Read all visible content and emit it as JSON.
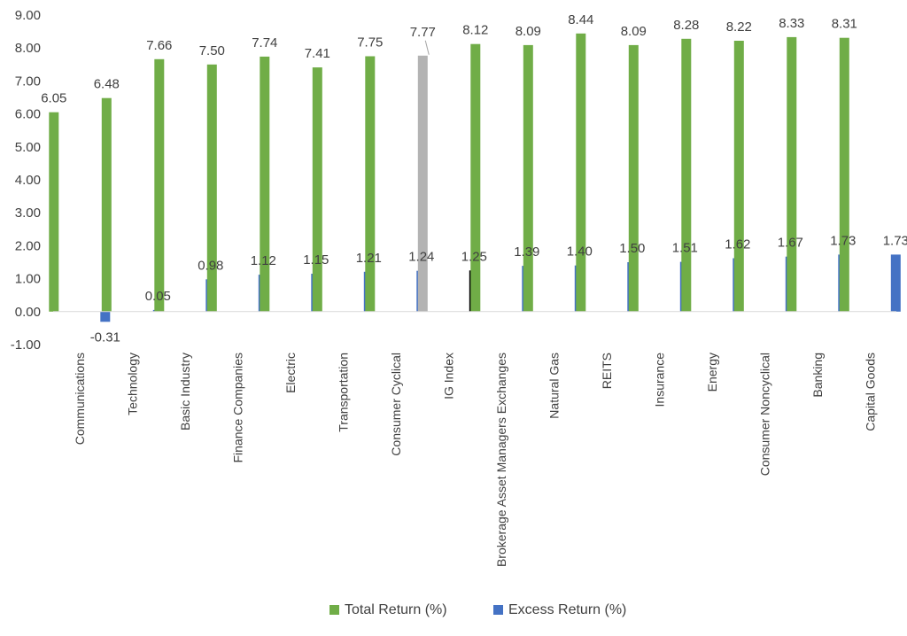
{
  "chart_data": {
    "type": "bar",
    "title": "",
    "xlabel": "",
    "ylabel": "",
    "ylim": [
      -1,
      9
    ],
    "yticks": [
      "9.00",
      "8.00",
      "7.00",
      "6.00",
      "5.00",
      "4.00",
      "3.00",
      "2.00",
      "1.00",
      "0.00",
      "-1.00"
    ],
    "grid": false,
    "legend_position": "bottom",
    "categories": [
      "Communications",
      "Technology",
      "Basic Industry",
      "Finance Companies",
      "Electric",
      "Transportation",
      "Consumer Cyclical",
      "IG Index",
      "Brokerage Asset Managers Exchanges",
      "Natural Gas",
      "REITS",
      "Insurance",
      "Energy",
      "Consumer Noncyclical",
      "Banking",
      "Capital Goods"
    ],
    "series": [
      {
        "name": "Total Return (%)",
        "color": "#70ad47",
        "highlight_color": "#b3b3b3",
        "values": [
          6.05,
          6.48,
          7.66,
          7.5,
          7.74,
          7.41,
          7.75,
          7.77,
          8.12,
          8.09,
          8.44,
          8.09,
          8.28,
          8.22,
          8.33,
          8.31
        ],
        "labels": [
          "6.05",
          "6.48",
          "7.66",
          "7.50",
          "7.74",
          "7.41",
          "7.75",
          "7.77",
          "8.12",
          "8.09",
          "8.44",
          "8.09",
          "8.28",
          "8.22",
          "8.33",
          "8.31"
        ]
      },
      {
        "name": "Excess Return (%)",
        "color": "#4472c4",
        "highlight_color": "#000000",
        "values": [
          -0.31,
          0.05,
          0.98,
          1.12,
          1.15,
          1.21,
          1.24,
          1.25,
          1.39,
          1.4,
          1.5,
          1.51,
          1.62,
          1.67,
          1.73,
          1.73
        ],
        "labels": [
          "-0.31",
          "0.05",
          "0.98",
          "1.12",
          "1.15",
          "1.21",
          "1.24",
          "1.25",
          "1.39",
          "1.40",
          "1.50",
          "1.51",
          "1.62",
          "1.67",
          "1.73",
          "1.73"
        ]
      }
    ],
    "highlight_category": "IG Index"
  }
}
